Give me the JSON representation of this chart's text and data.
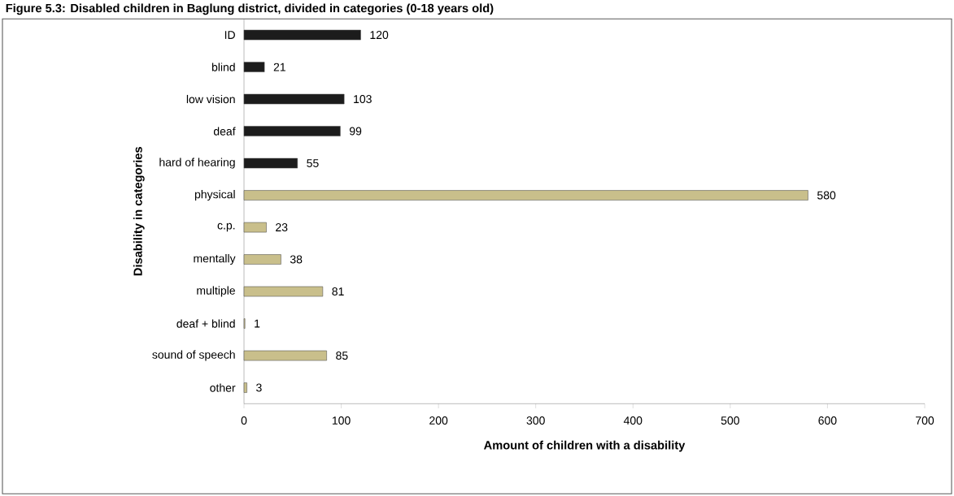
{
  "chart_data": {
    "type": "bar",
    "orientation": "horizontal",
    "title": "Figure 5.3: Disabled children in Baglung district, divided in categories (0-18 years old)",
    "xlabel": "Amount of children with a disability",
    "ylabel": "Disability in categories",
    "categories": [
      "ID",
      "blind",
      "low vision",
      "deaf",
      "hard of hearing",
      "physical",
      "c.p.",
      "mentally",
      "multiple",
      "deaf + blind",
      "sound of speech",
      "other"
    ],
    "values": [
      120,
      21,
      103,
      99,
      55,
      580,
      23,
      38,
      81,
      1,
      85,
      3
    ],
    "colors": [
      "#1c1c1c",
      "#1c1c1c",
      "#1c1c1c",
      "#1c1c1c",
      "#1c1c1c",
      "#c9bf8b",
      "#c9bf8b",
      "#c9bf8b",
      "#c9bf8b",
      "#c9bf8b",
      "#c9bf8b",
      "#c9bf8b"
    ],
    "xlim": [
      0,
      700
    ],
    "xticks": [
      0,
      100,
      200,
      300,
      400,
      500,
      600,
      700
    ],
    "data_labels": true
  }
}
